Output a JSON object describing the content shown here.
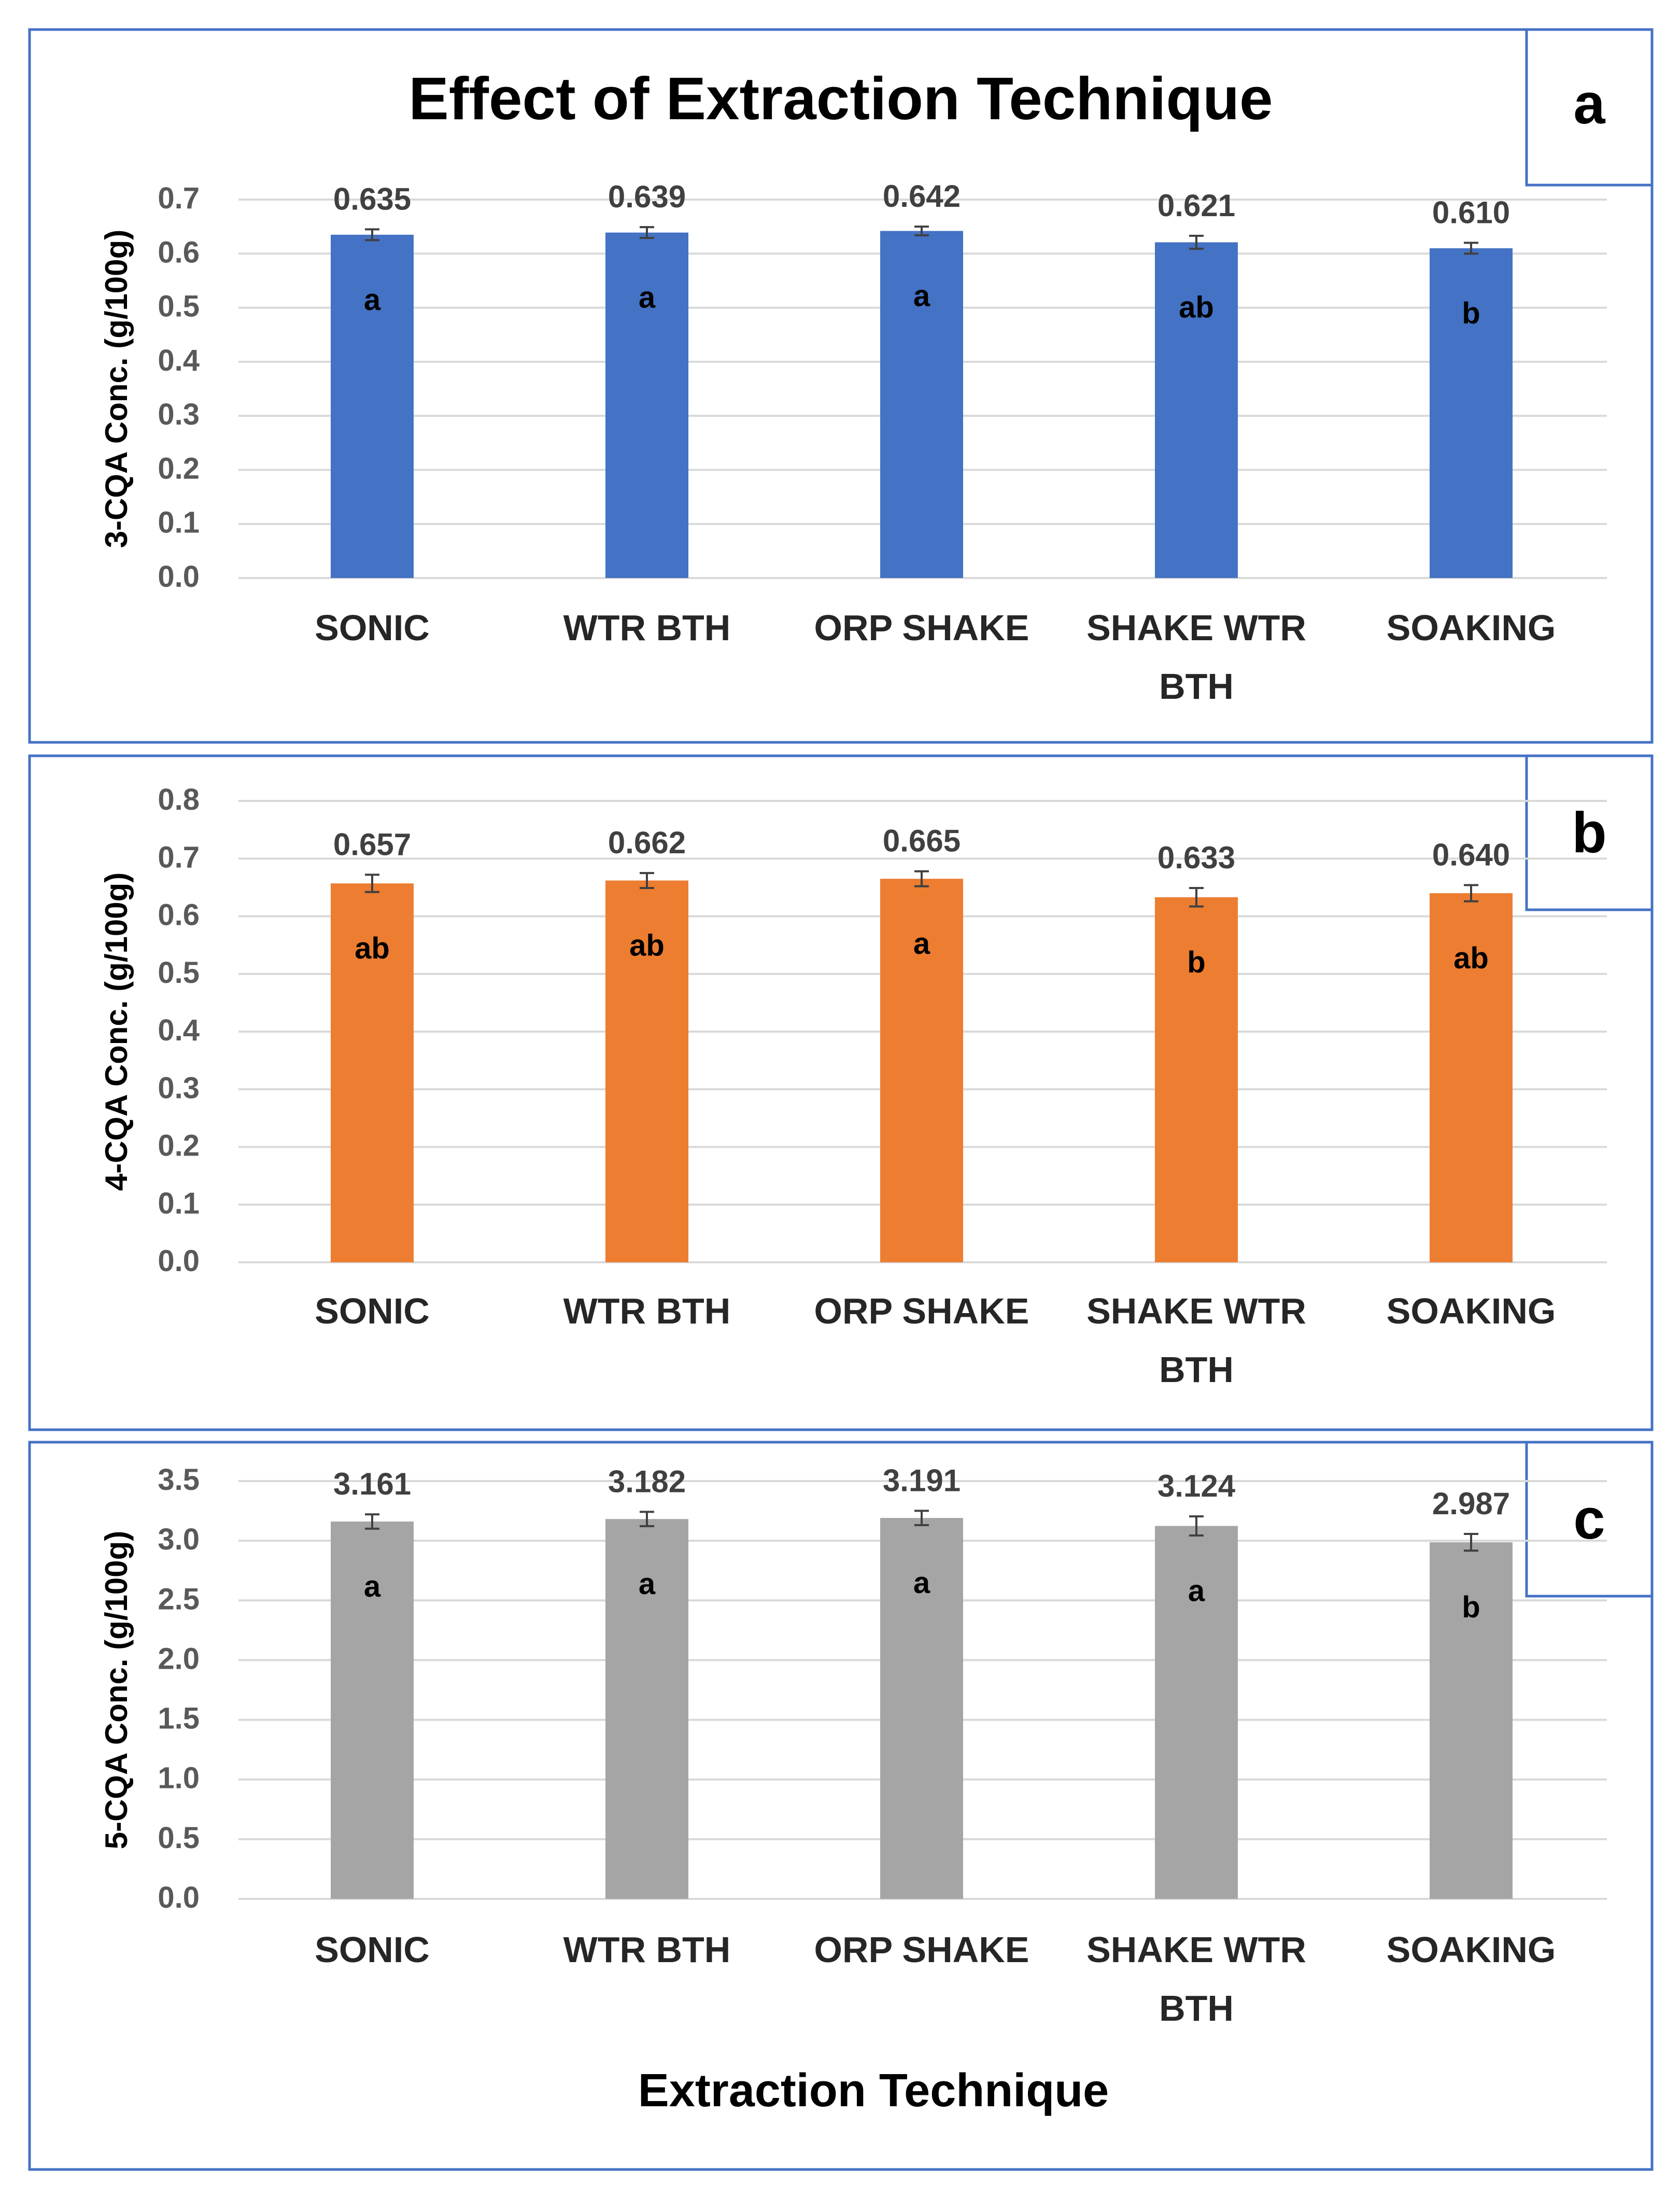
{
  "figure": {
    "title": "Effect of  Extraction Technique",
    "xlabel": "Extraction Technique"
  },
  "colors": {
    "frame": "#4472C4",
    "series_a": "#4472C4",
    "series_b": "#ED7D31",
    "series_c": "#A5A5A5",
    "grid": "#D9D9D9",
    "tick_text": "#595959",
    "value_text": "#404040",
    "letter_text": "#000000"
  },
  "chart_data": [
    {
      "type": "bar",
      "panel_label": "a",
      "title": "Effect of  Extraction Technique",
      "ylabel": "3-CQA Conc. (g/100g)",
      "xlabel": "",
      "categories": [
        "SONIC",
        "WTR BTH",
        "ORP SHAKE",
        "SHAKE WTR BTH",
        "SOAKING"
      ],
      "values": [
        0.635,
        0.639,
        0.642,
        0.621,
        0.61
      ],
      "value_labels": [
        "0.635",
        "0.639",
        "0.642",
        "0.621",
        "0.610"
      ],
      "errors": [
        0.01,
        0.01,
        0.008,
        0.012,
        0.01
      ],
      "letters": [
        "a",
        "a",
        "a",
        "ab",
        "b"
      ],
      "ylim": [
        0,
        0.7
      ],
      "yticks": [
        0.0,
        0.1,
        0.2,
        0.3,
        0.4,
        0.5,
        0.6,
        0.7
      ],
      "ytick_decimals": 1,
      "grid": true
    },
    {
      "type": "bar",
      "panel_label": "b",
      "title": "",
      "ylabel": "4-CQA Conc. (g/100g)",
      "xlabel": "",
      "categories": [
        "SONIC",
        "WTR BTH",
        "ORP SHAKE",
        "SHAKE WTR BTH",
        "SOAKING"
      ],
      "values": [
        0.657,
        0.662,
        0.665,
        0.633,
        0.64
      ],
      "value_labels": [
        "0.657",
        "0.662",
        "0.665",
        "0.633",
        "0.640"
      ],
      "errors": [
        0.015,
        0.013,
        0.013,
        0.016,
        0.014
      ],
      "letters": [
        "ab",
        "ab",
        "a",
        "b",
        "ab"
      ],
      "ylim": [
        0,
        0.8
      ],
      "yticks": [
        0.0,
        0.1,
        0.2,
        0.3,
        0.4,
        0.5,
        0.6,
        0.7,
        0.8
      ],
      "ytick_decimals": 1,
      "grid": true
    },
    {
      "type": "bar",
      "panel_label": "c",
      "title": "",
      "ylabel": "5-CQA Conc. (g/100g)",
      "xlabel": "Extraction Technique",
      "categories": [
        "SONIC",
        "WTR BTH",
        "ORP SHAKE",
        "SHAKE WTR BTH",
        "SOAKING"
      ],
      "values": [
        3.161,
        3.182,
        3.191,
        3.124,
        2.987
      ],
      "value_labels": [
        "3.161",
        "3.182",
        "3.191",
        "3.124",
        "2.987"
      ],
      "errors": [
        0.06,
        0.06,
        0.06,
        0.08,
        0.07
      ],
      "letters": [
        "a",
        "a",
        "a",
        "a",
        "b"
      ],
      "ylim": [
        0,
        3.5
      ],
      "yticks": [
        0.0,
        0.5,
        1.0,
        1.5,
        2.0,
        2.5,
        3.0,
        3.5
      ],
      "ytick_decimals": 1,
      "grid": true
    }
  ]
}
